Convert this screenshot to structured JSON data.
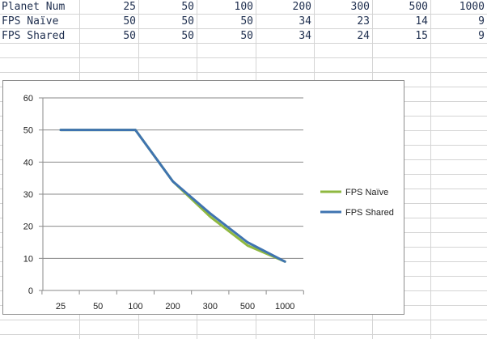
{
  "sheet": {
    "rows": [
      {
        "label": "Planet Num",
        "values": [
          "25",
          "50",
          "100",
          "200",
          "300",
          "500",
          "1000"
        ]
      },
      {
        "label": "FPS Naïve",
        "values": [
          "50",
          "50",
          "50",
          "34",
          "23",
          "14",
          "9"
        ]
      },
      {
        "label": "FPS Shared",
        "values": [
          "50",
          "50",
          "50",
          "34",
          "24",
          "15",
          "9"
        ]
      }
    ]
  },
  "chart_data": {
    "type": "line",
    "categories": [
      "25",
      "50",
      "100",
      "200",
      "300",
      "500",
      "1000"
    ],
    "series": [
      {
        "name": "FPS Naïve",
        "values": [
          50,
          50,
          50,
          34,
          23,
          14,
          9
        ],
        "color": "#8fb840"
      },
      {
        "name": "FPS Shared",
        "values": [
          50,
          50,
          50,
          34,
          24,
          15,
          9
        ],
        "color": "#3f74b0"
      }
    ],
    "yticks": [
      "0",
      "10",
      "20",
      "30",
      "40",
      "50",
      "60"
    ],
    "ylim": [
      0,
      60
    ],
    "grid": true,
    "legend": "right"
  }
}
